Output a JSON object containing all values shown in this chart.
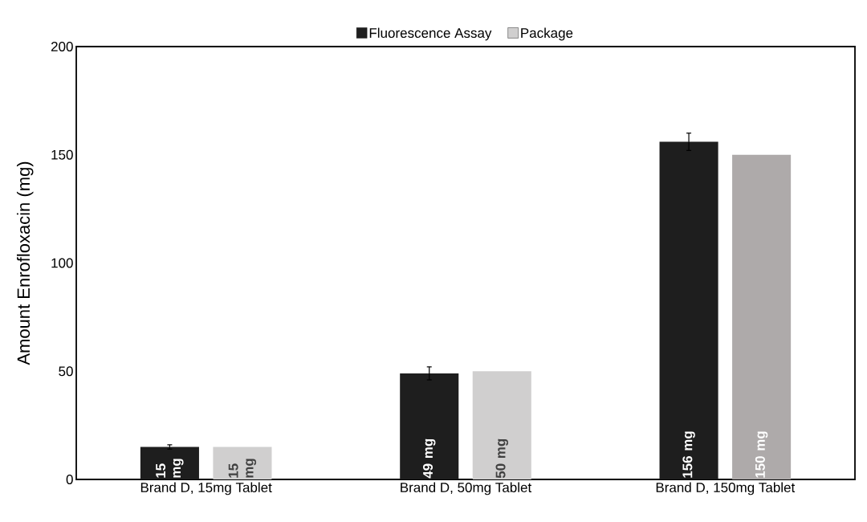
{
  "chart_data": {
    "type": "bar",
    "ylabel": "Amount Enrofloxacin (mg)",
    "categories": [
      "Brand D, 15mg Tablet",
      "Brand D, 50mg Tablet",
      "Brand D, 150mg Tablet"
    ],
    "series": [
      {
        "name": "Fluorescence Assay",
        "color": "#1e1e1e",
        "values": [
          15,
          49,
          156
        ],
        "errors": [
          1,
          3,
          4
        ],
        "value_labels": [
          "15 mg",
          "49 mg",
          "156 mg"
        ]
      },
      {
        "name": "Package",
        "color": "#d0cfcf",
        "colors": [
          "#d0cfcf",
          "#d0cfcf",
          "#aeaaaa"
        ],
        "values": [
          15,
          50,
          150
        ],
        "value_labels": [
          "15 mg",
          "50 mg",
          "150 mg"
        ]
      }
    ],
    "ylim": [
      0,
      200
    ],
    "yticks": [
      0,
      50,
      100,
      150,
      200
    ],
    "legend": "top"
  }
}
